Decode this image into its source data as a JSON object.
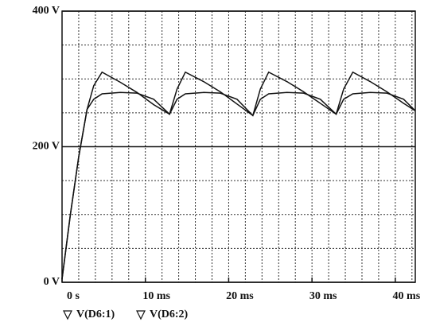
{
  "chart_data": {
    "type": "line",
    "x": [
      0,
      1,
      2,
      3,
      3.8,
      4.8,
      7,
      9,
      11,
      12.9,
      13.8,
      14.8,
      17,
      19,
      21,
      22.9,
      23.8,
      24.8,
      27,
      29,
      31,
      32.9,
      33.8,
      34.9,
      37,
      39,
      41,
      42.4
    ],
    "series": [
      {
        "name": "V(D6:1)",
        "color": "#111111",
        "values": [
          5,
          100,
          185,
          255,
          290,
          310,
          295,
          280,
          262,
          248,
          285,
          310,
          296,
          281,
          263,
          246,
          285,
          310,
          296,
          281,
          264,
          248,
          285,
          310,
          296,
          281,
          264,
          253
        ]
      },
      {
        "name": "V(D6:2)",
        "color": "#111111",
        "values": [
          5,
          100,
          185,
          255,
          270,
          278,
          280,
          279,
          270,
          248,
          270,
          278,
          280,
          279,
          270,
          246,
          270,
          278,
          280,
          279,
          270,
          248,
          270,
          278,
          280,
          279,
          270,
          253
        ]
      }
    ],
    "xlim": [
      0,
      42.4
    ],
    "ylim": [
      0,
      400
    ],
    "xticks": [
      {
        "value": 0,
        "label": "0 s"
      },
      {
        "value": 10,
        "label": "10 ms"
      },
      {
        "value": 20,
        "label": "20 ms"
      },
      {
        "value": 30,
        "label": "30 ms"
      },
      {
        "value": 40,
        "label": "40 ms"
      }
    ],
    "yticks": [
      {
        "value": 0,
        "label": "0 V"
      },
      {
        "value": 200,
        "label": "200 V"
      },
      {
        "value": 400,
        "label": "400 V"
      }
    ],
    "grid": true
  }
}
